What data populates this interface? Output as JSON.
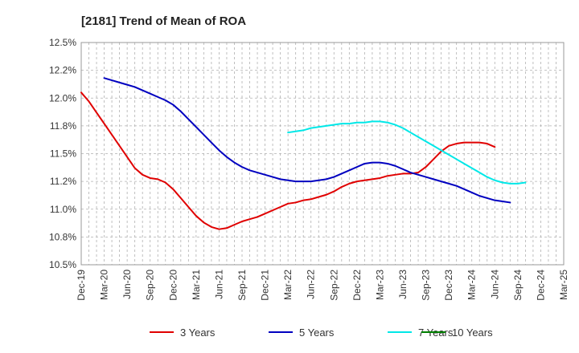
{
  "chart_data": {
    "type": "line",
    "title": "[2181]  Trend of Mean of ROA",
    "ylim": [
      10.5,
      12.5
    ],
    "y_ticks": [
      "12.5%",
      "12.2%",
      "12.0%",
      "11.8%",
      "11.5%",
      "11.2%",
      "11.0%",
      "10.8%",
      "10.5%"
    ],
    "x_ticks": [
      "Dec-19",
      "Mar-20",
      "Jun-20",
      "Sep-20",
      "Dec-20",
      "Mar-21",
      "Jun-21",
      "Sep-21",
      "Dec-21",
      "Mar-22",
      "Jun-22",
      "Sep-22",
      "Dec-22",
      "Mar-23",
      "Jun-23",
      "Sep-23",
      "Dec-23",
      "Mar-24",
      "Jun-24",
      "Sep-24",
      "Dec-24",
      "Mar-25"
    ],
    "grid": true,
    "legend_position": "bottom",
    "series": [
      {
        "name": "3 Years",
        "color": "#e00000",
        "start": "Dec-19",
        "values": [
          12.05,
          11.97,
          11.87,
          11.77,
          11.67,
          11.57,
          11.47,
          11.37,
          11.31,
          11.28,
          11.27,
          11.24,
          11.18,
          11.1,
          11.02,
          10.94,
          10.88,
          10.84,
          10.82,
          10.83,
          10.86,
          10.89,
          10.91,
          10.93,
          10.96,
          10.99,
          11.02,
          11.05,
          11.06,
          11.08,
          11.09,
          11.11,
          11.13,
          11.16,
          11.2,
          11.23,
          11.25,
          11.26,
          11.27,
          11.28,
          11.3,
          11.31,
          11.32,
          11.32,
          11.33,
          11.38,
          11.45,
          11.52,
          11.57,
          11.59,
          11.6,
          11.6,
          11.6,
          11.59,
          11.56
        ]
      },
      {
        "name": "5 Years",
        "color": "#0000c0",
        "start": "Mar-20",
        "values": [
          12.18,
          12.16,
          12.14,
          12.12,
          12.1,
          12.07,
          12.04,
          12.01,
          11.98,
          11.94,
          11.88,
          11.81,
          11.74,
          11.67,
          11.6,
          11.53,
          11.47,
          11.42,
          11.38,
          11.35,
          11.33,
          11.31,
          11.29,
          11.27,
          11.26,
          11.25,
          11.25,
          11.25,
          11.26,
          11.27,
          11.29,
          11.32,
          11.35,
          11.38,
          11.41,
          11.42,
          11.42,
          11.41,
          11.39,
          11.36,
          11.33,
          11.31,
          11.29,
          11.27,
          11.25,
          11.23,
          11.21,
          11.18,
          11.15,
          11.12,
          11.1,
          11.08,
          11.07,
          11.06
        ]
      },
      {
        "name": "7 Years",
        "color": "#00e8e8",
        "start": "Mar-22",
        "values": [
          11.69,
          11.7,
          11.71,
          11.73,
          11.74,
          11.75,
          11.76,
          11.77,
          11.77,
          11.78,
          11.78,
          11.79,
          11.79,
          11.78,
          11.76,
          11.73,
          11.69,
          11.65,
          11.61,
          11.57,
          11.53,
          11.49,
          11.45,
          11.41,
          11.37,
          11.33,
          11.29,
          11.26,
          11.24,
          11.23,
          11.23,
          11.24
        ]
      },
      {
        "name": "10 Years",
        "color": "#008000",
        "start": "Mar-25",
        "values": []
      }
    ]
  }
}
